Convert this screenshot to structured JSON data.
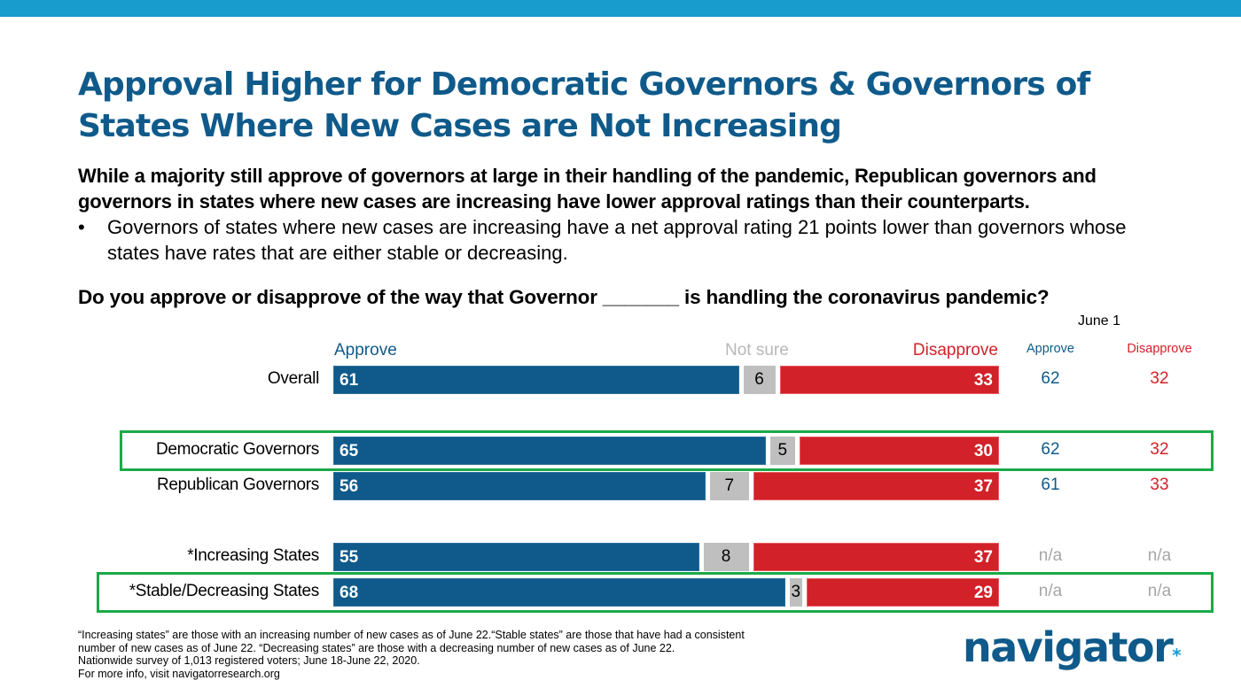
{
  "title": "Approval Higher for Democratic Governors & Governors of States Where New Cases are Not Increasing",
  "subtitle": "While a majority still approve of governors at large in their handling of the pandemic, Republican governors and governors in states where new cases are increasing have lower approval ratings than their counterparts.",
  "bullet": "Governors of states where new cases are increasing have a net approval rating 21 points lower than governors whose states have rates that are either stable or decreasing.",
  "bullet_marker": "•",
  "question": "Do you approve or disapprove of the way that Governor _______ is handling the coronavirus pandemic?",
  "colors": {
    "approve": "#0f5a8a",
    "not_sure": "#bfbfbf",
    "disapprove": "#d22128",
    "highlight": "#1aaa48",
    "topbar": "#189bcd"
  },
  "chart_data": {
    "type": "bar",
    "orientation": "horizontal-stacked",
    "title": "Do you approve or disapprove of the way that Governor _______ is handling the coronavirus pandemic?",
    "legend": [
      "Approve",
      "Not sure",
      "Disapprove"
    ],
    "categories": [
      "Overall",
      "Democratic Governors",
      "Republican Governors",
      "*Increasing States",
      "*Stable/Decreasing States"
    ],
    "series": [
      {
        "name": "Approve",
        "values": [
          61,
          65,
          56,
          55,
          68
        ]
      },
      {
        "name": "Not sure",
        "values": [
          6,
          5,
          7,
          8,
          3
        ]
      },
      {
        "name": "Disapprove",
        "values": [
          33,
          30,
          37,
          37,
          29
        ]
      }
    ],
    "highlighted": [
      "Democratic Governors",
      "*Stable/Decreasing States"
    ],
    "comparison": {
      "label": "June 1",
      "headers": [
        "Approve",
        "Disapprove"
      ],
      "approve": [
        "62",
        "62",
        "61",
        "n/a",
        "n/a"
      ],
      "disapprove": [
        "32",
        "32",
        "33",
        "n/a",
        "n/a"
      ]
    },
    "xlim": [
      0,
      100
    ]
  },
  "footnote": [
    "“Increasing states” are those with an increasing number of new cases as of June 22.“Stable states” are those that have had a consistent",
    "number of new cases as of June 22. “Decreasing states” are those with a decreasing number of new cases as of June 22.",
    "Nationwide survey of 1,013 registered voters; June 18-June 22, 2020.",
    "For more info, visit navigatorresearch.org"
  ],
  "logo": {
    "text": "navigator",
    "mark": "."
  }
}
